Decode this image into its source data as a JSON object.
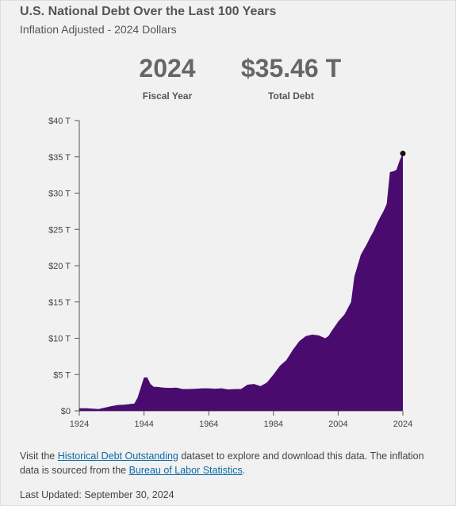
{
  "header": {
    "title": "U.S. National Debt Over the Last 100 Years",
    "subtitle": "Inflation Adjusted - 2024 Dollars"
  },
  "stats": {
    "year_value": "2024",
    "year_label": "Fiscal Year",
    "debt_value": "$35.46 T",
    "debt_label": "Total Debt"
  },
  "footer": {
    "text_1": "Visit the ",
    "link_1": "Historical Debt Outstanding",
    "text_2": " dataset to explore and download this data. The inflation data is sourced from the ",
    "link_2": "Bureau of Labor Statistics",
    "text_3": ".",
    "updated": "Last Updated: September 30, 2024"
  },
  "colors": {
    "area": "#4a0b6e",
    "point": "#111111",
    "axis": "#555555"
  },
  "chart_data": {
    "type": "area",
    "x": [
      1924,
      1926,
      1928,
      1930,
      1932,
      1934,
      1936,
      1938,
      1940,
      1941,
      1942,
      1943,
      1944,
      1945,
      1946,
      1947,
      1948,
      1950,
      1952,
      1954,
      1956,
      1958,
      1960,
      1962,
      1964,
      1966,
      1968,
      1970,
      1972,
      1974,
      1976,
      1978,
      1980,
      1982,
      1984,
      1986,
      1988,
      1990,
      1992,
      1994,
      1996,
      1998,
      2000,
      2001,
      2002,
      2004,
      2006,
      2008,
      2009,
      2010,
      2011,
      2012,
      2013,
      2014,
      2015,
      2016,
      2017,
      2018,
      2019,
      2020,
      2021,
      2022,
      2023,
      2024
    ],
    "values": [
      0.35,
      0.35,
      0.3,
      0.25,
      0.45,
      0.65,
      0.8,
      0.85,
      0.95,
      1.0,
      1.8,
      3.2,
      4.6,
      4.6,
      3.7,
      3.3,
      3.3,
      3.2,
      3.15,
      3.2,
      3.0,
      3.0,
      3.05,
      3.1,
      3.1,
      3.05,
      3.1,
      2.95,
      3.0,
      3.0,
      3.6,
      3.7,
      3.4,
      3.9,
      5.0,
      6.2,
      7.0,
      8.4,
      9.6,
      10.3,
      10.5,
      10.4,
      10.0,
      10.3,
      11.0,
      12.3,
      13.3,
      15.0,
      18.5,
      20.0,
      21.5,
      22.3,
      23.1,
      24.0,
      24.8,
      25.8,
      26.7,
      27.5,
      28.5,
      32.9,
      33.0,
      33.2,
      34.5,
      35.46
    ],
    "xticks": [
      1924,
      1944,
      1964,
      1984,
      2004,
      2024
    ],
    "xtick_labels": [
      "1924",
      "1944",
      "1964",
      "1984",
      "2004",
      "2024"
    ],
    "yticks": [
      0,
      5,
      10,
      15,
      20,
      25,
      30,
      35,
      40
    ],
    "ytick_labels": [
      "$0",
      "$5 T",
      "$10 T",
      "$15 T",
      "$20 T",
      "$25 T",
      "$30 T",
      "$35 T",
      "$40 T"
    ],
    "xlim": [
      1924,
      2024
    ],
    "ylim": [
      0,
      40
    ],
    "unit": "Trillions of 2024 dollars",
    "highlight": {
      "x": 2024,
      "value": 35.46
    },
    "grid": false,
    "legend": "none"
  }
}
